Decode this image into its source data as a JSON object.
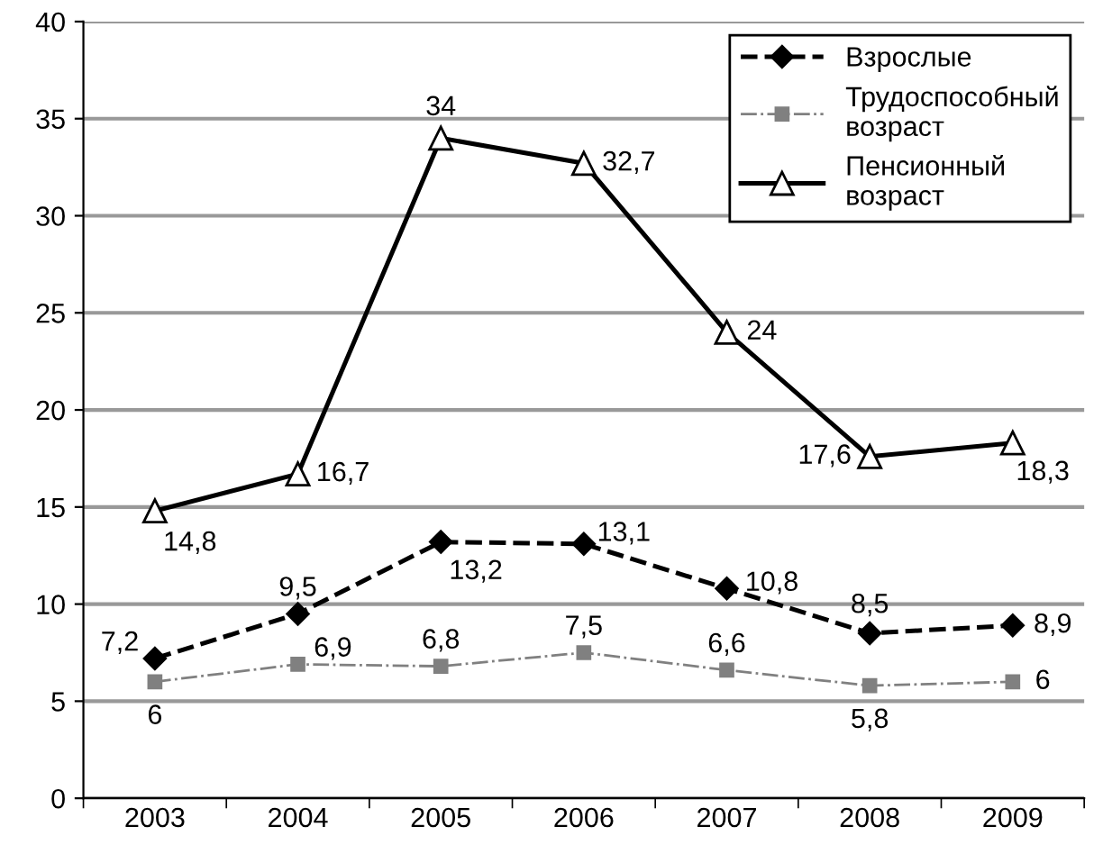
{
  "chart_data": {
    "type": "line",
    "categories": [
      "2003",
      "2004",
      "2005",
      "2006",
      "2007",
      "2008",
      "2009"
    ],
    "series": [
      {
        "name": "Взрослые",
        "color": "#000000",
        "marker": "diamond",
        "line_style": "dashed",
        "values": [
          7.2,
          9.5,
          13.2,
          13.1,
          10.8,
          8.5,
          8.9
        ],
        "value_labels": [
          "7,2",
          "9,5",
          "13,2",
          "13,1",
          "10,8",
          "8,5",
          "8,9"
        ]
      },
      {
        "name": "Трудоспособный\nвозраст",
        "color": "#808080",
        "marker": "square",
        "line_style": "dashdot",
        "values": [
          6,
          6.9,
          6.8,
          7.5,
          6.6,
          5.8,
          6
        ],
        "value_labels": [
          "6",
          "6,9",
          "6,8",
          "7,5",
          "6,6",
          "5,8",
          "6"
        ]
      },
      {
        "name": "Пенсионный\nвозраст",
        "color": "#000000",
        "marker": "triangle",
        "line_style": "solid",
        "values": [
          14.8,
          16.7,
          34,
          32.7,
          24,
          17.6,
          18.3
        ],
        "value_labels": [
          "14,8",
          "16,7",
          "34",
          "32,7",
          "24",
          "17,6",
          "18,3"
        ]
      }
    ],
    "ylim": [
      0,
      40
    ],
    "yticks": [
      0,
      5,
      10,
      15,
      20,
      25,
      30,
      35,
      40
    ],
    "grid": "y",
    "legend": "top right"
  }
}
